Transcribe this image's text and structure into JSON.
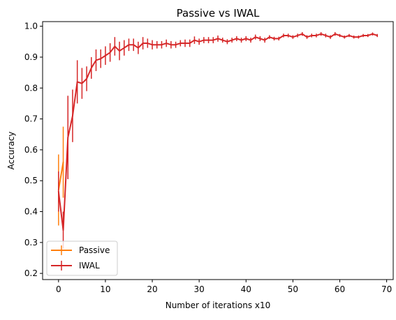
{
  "chart_data": {
    "type": "line",
    "title": "Passive vs IWAL",
    "xlabel": "Number of iterations x10",
    "ylabel": "Accuracy",
    "xlim": [
      -3.4,
      71.4
    ],
    "ylim": [
      0.18,
      1.015
    ],
    "xticks": [
      0,
      10,
      20,
      30,
      40,
      50,
      60,
      70
    ],
    "yticks": [
      0.2,
      0.3,
      0.4,
      0.5,
      0.6,
      0.7,
      0.8,
      0.9,
      1.0
    ],
    "ytick_labels": [
      "0.2",
      "0.3",
      "0.4",
      "0.5",
      "0.6",
      "0.7",
      "0.8",
      "0.9",
      "1.0"
    ],
    "grid": false,
    "legend_position": "lower-left",
    "series": [
      {
        "name": "Passive",
        "color": "#ff7f0e",
        "x": [
          0,
          1
        ],
        "y": [
          0.47,
          0.56
        ],
        "yerr": [
          0.115,
          0.115
        ]
      },
      {
        "name": "IWAL",
        "color": "#d62728",
        "x": [
          0,
          1,
          2,
          3,
          4,
          5,
          6,
          7,
          8,
          9,
          10,
          11,
          12,
          13,
          14,
          15,
          16,
          17,
          18,
          19,
          20,
          21,
          22,
          23,
          24,
          25,
          26,
          27,
          28,
          29,
          30,
          31,
          32,
          33,
          34,
          35,
          36,
          37,
          38,
          39,
          40,
          41,
          42,
          43,
          44,
          45,
          46,
          47,
          48,
          49,
          50,
          51,
          52,
          53,
          54,
          55,
          56,
          57,
          58,
          59,
          60,
          61,
          62,
          63,
          64,
          65,
          66,
          67,
          68
        ],
        "y": [
          0.465,
          0.34,
          0.64,
          0.71,
          0.82,
          0.815,
          0.83,
          0.865,
          0.89,
          0.895,
          0.905,
          0.915,
          0.935,
          0.92,
          0.93,
          0.94,
          0.94,
          0.93,
          0.945,
          0.945,
          0.94,
          0.94,
          0.94,
          0.945,
          0.94,
          0.94,
          0.945,
          0.945,
          0.945,
          0.955,
          0.95,
          0.955,
          0.955,
          0.955,
          0.96,
          0.955,
          0.95,
          0.955,
          0.96,
          0.955,
          0.96,
          0.955,
          0.965,
          0.96,
          0.955,
          0.965,
          0.96,
          0.96,
          0.97,
          0.97,
          0.965,
          0.97,
          0.975,
          0.965,
          0.97,
          0.97,
          0.975,
          0.97,
          0.965,
          0.975,
          0.97,
          0.965,
          0.97,
          0.965,
          0.965,
          0.97,
          0.97,
          0.975,
          0.97
        ],
        "yerr": [
          0.065,
          0.06,
          0.135,
          0.085,
          0.07,
          0.05,
          0.04,
          0.035,
          0.035,
          0.03,
          0.03,
          0.03,
          0.03,
          0.03,
          0.025,
          0.02,
          0.02,
          0.02,
          0.02,
          0.015,
          0.015,
          0.012,
          0.012,
          0.012,
          0.012,
          0.01,
          0.01,
          0.012,
          0.012,
          0.012,
          0.01,
          0.01,
          0.01,
          0.01,
          0.01,
          0.008,
          0.008,
          0.008,
          0.008,
          0.008,
          0.008,
          0.008,
          0.008,
          0.008,
          0.008,
          0.006,
          0.006,
          0.006,
          0.006,
          0.006,
          0.006,
          0.006,
          0.006,
          0.006,
          0.006,
          0.006,
          0.006,
          0.006,
          0.006,
          0.006,
          0.005,
          0.005,
          0.005,
          0.005,
          0.005,
          0.005,
          0.005,
          0.005,
          0.005
        ]
      }
    ]
  }
}
